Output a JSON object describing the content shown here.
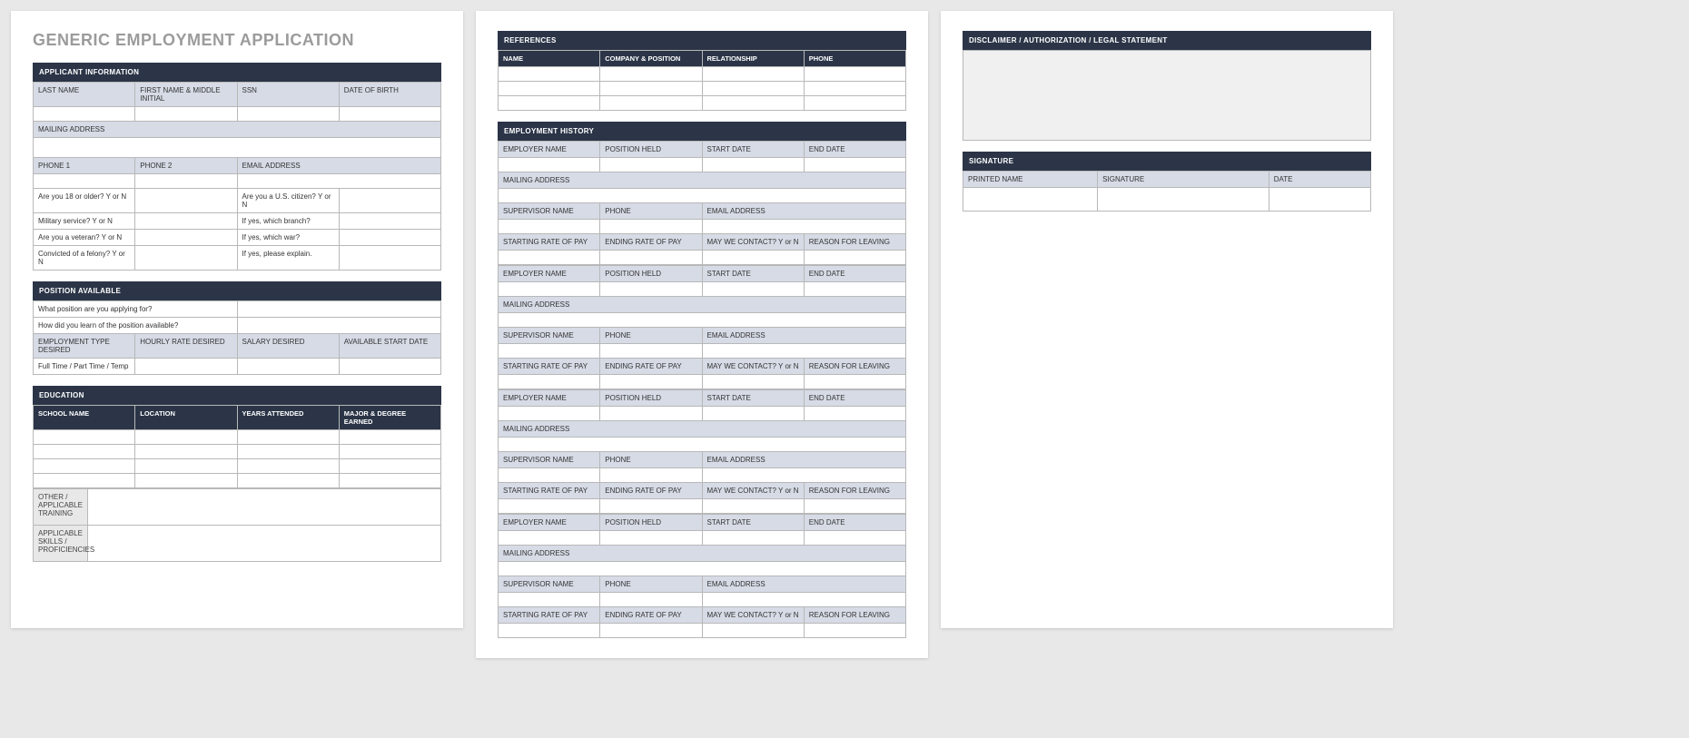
{
  "title": "GENERIC EMPLOYMENT APPLICATION",
  "colors": {
    "page_bg": "#ffffff",
    "canvas_bg": "#e8e8e8",
    "header_bg": "#2b3547",
    "header_fg": "#ffffff",
    "label_bg": "#d6dbe6",
    "side_bg": "#e8e8e8",
    "border": "#b8b8b8",
    "title_fg": "#9b9b9b"
  },
  "applicant": {
    "header": "APPLICANT INFORMATION",
    "row1": [
      "LAST NAME",
      "FIRST NAME & MIDDLE INITIAL",
      "SSN",
      "DATE OF BIRTH"
    ],
    "mailing": "MAILING ADDRESS",
    "row2": [
      "PHONE 1",
      "PHONE 2",
      "EMAIL ADDRESS"
    ],
    "q_18": "Are you 18 or older?  Y or N",
    "q_citizen": "Are you a U.S. citizen?  Y or N",
    "q_military": "Military service?  Y or N",
    "q_branch": "If yes, which branch?",
    "q_veteran": "Are you a veteran?  Y or N",
    "q_war": "If yes, which war?",
    "q_felony": "Convicted of a felony?  Y or N",
    "q_explain": "If yes, please explain."
  },
  "position": {
    "header": "POSITION AVAILABLE",
    "q_applying": "What position are you applying for?",
    "q_learn": "How did you learn of the position available?",
    "cols": [
      "EMPLOYMENT TYPE DESIRED",
      "HOURLY RATE DESIRED",
      "SALARY DESIRED",
      "AVAILABLE START DATE"
    ],
    "types": "Full Time / Part Time / Temp"
  },
  "education": {
    "header": "EDUCATION",
    "cols": [
      "SCHOOL NAME",
      "LOCATION",
      "YEARS ATTENDED",
      "MAJOR & DEGREE EARNED"
    ],
    "other_training": "OTHER / APPLICABLE TRAINING",
    "skills": "APPLICABLE SKILLS / PROFICIENCIES"
  },
  "references": {
    "header": "REFERENCES",
    "cols": [
      "NAME",
      "COMPANY & POSITION",
      "RELATIONSHIP",
      "PHONE"
    ]
  },
  "employment": {
    "header": "EMPLOYMENT HISTORY",
    "r1": [
      "EMPLOYER NAME",
      "POSITION HELD",
      "START DATE",
      "END DATE"
    ],
    "mailing": "MAILING ADDRESS",
    "r2": [
      "SUPERVISOR NAME",
      "PHONE",
      "EMAIL ADDRESS"
    ],
    "r3": [
      "STARTING RATE OF PAY",
      "ENDING RATE OF PAY",
      "MAY WE CONTACT? Y or N",
      "REASON FOR LEAVING"
    ]
  },
  "disclaimer": {
    "header": "DISCLAIMER / AUTHORIZATION / LEGAL STATEMENT"
  },
  "signature": {
    "header": "SIGNATURE",
    "cols": [
      "PRINTED NAME",
      "SIGNATURE",
      "DATE"
    ]
  }
}
